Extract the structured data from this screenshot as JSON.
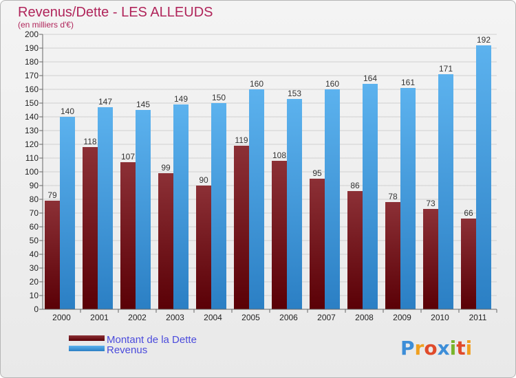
{
  "chart_data": {
    "type": "bar",
    "title": "Revenus/Dette - LES ALLEUDS",
    "subtitle": "(en milliers d'€)",
    "categories": [
      "2000",
      "2001",
      "2002",
      "2003",
      "2004",
      "2005",
      "2006",
      "2007",
      "2008",
      "2009",
      "2010",
      "2011"
    ],
    "series": [
      {
        "name": "Montant de la Dette",
        "color": "#7a1c24",
        "values": [
          79,
          118,
          107,
          99,
          90,
          119,
          108,
          95,
          86,
          78,
          73,
          66
        ]
      },
      {
        "name": "Revenus",
        "color": "#4da6e8",
        "values": [
          140,
          147,
          145,
          149,
          150,
          160,
          153,
          160,
          164,
          161,
          171,
          192
        ]
      }
    ],
    "ylim": [
      0,
      200
    ],
    "ytick_step": 10,
    "grid": true,
    "legend": "bottom-left"
  },
  "logo": {
    "text": "Proxiti"
  }
}
